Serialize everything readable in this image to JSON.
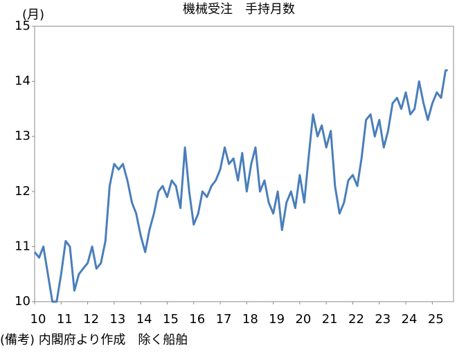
{
  "chart_data": {
    "type": "line",
    "title": "機械受注　手持月数",
    "y_unit": "(月)",
    "note": "(備考) 内閣府より作成　除く船舶",
    "x": [
      10,
      10.17,
      10.33,
      10.5,
      10.67,
      10.83,
      11,
      11.17,
      11.33,
      11.5,
      11.67,
      11.83,
      12,
      12.17,
      12.33,
      12.5,
      12.67,
      12.83,
      13,
      13.17,
      13.33,
      13.5,
      13.67,
      13.83,
      14,
      14.17,
      14.33,
      14.5,
      14.67,
      14.83,
      15,
      15.17,
      15.33,
      15.5,
      15.67,
      15.83,
      16,
      16.17,
      16.33,
      16.5,
      16.67,
      16.83,
      17,
      17.17,
      17.33,
      17.5,
      17.67,
      17.83,
      18,
      18.17,
      18.33,
      18.5,
      18.67,
      18.83,
      19,
      19.17,
      19.33,
      19.5,
      19.67,
      19.83,
      20,
      20.17,
      20.33,
      20.5,
      20.67,
      20.83,
      21,
      21.17,
      21.33,
      21.5,
      21.67,
      21.83,
      22,
      22.17,
      22.33,
      22.5,
      22.67,
      22.83,
      23,
      23.17,
      23.33,
      23.5,
      23.67,
      23.83,
      24,
      24.17,
      24.33,
      24.5,
      24.67,
      24.83,
      25,
      25.17,
      25.33,
      25.5,
      25.58
    ],
    "series": [
      {
        "color": "#4a7ebb",
        "values": [
          10.9,
          10.8,
          11.0,
          10.5,
          10.0,
          10.0,
          10.5,
          11.1,
          11.0,
          10.2,
          10.5,
          10.6,
          10.7,
          11.0,
          10.6,
          10.7,
          11.1,
          12.1,
          12.5,
          12.4,
          12.5,
          12.2,
          11.8,
          11.6,
          11.2,
          10.9,
          11.3,
          11.6,
          12.0,
          12.1,
          11.9,
          12.2,
          12.1,
          11.7,
          12.8,
          12.0,
          11.4,
          11.6,
          12.0,
          11.9,
          12.1,
          12.2,
          12.4,
          12.8,
          12.5,
          12.6,
          12.2,
          12.7,
          12.0,
          12.5,
          12.8,
          12.0,
          12.2,
          11.8,
          11.6,
          12.0,
          11.3,
          11.8,
          12.0,
          11.7,
          12.3,
          11.8,
          12.6,
          13.4,
          13.0,
          13.2,
          12.8,
          13.1,
          12.1,
          11.6,
          11.8,
          12.2,
          12.3,
          12.1,
          12.6,
          13.3,
          13.4,
          13.0,
          13.3,
          12.8,
          13.1,
          13.6,
          13.7,
          13.5,
          13.8,
          13.4,
          13.5,
          14.0,
          13.6,
          13.3,
          13.6,
          13.8,
          13.7,
          14.2,
          14.2
        ]
      }
    ],
    "xlim": [
      10,
      25.8
    ],
    "xticks": [
      10,
      11,
      12,
      13,
      14,
      15,
      16,
      17,
      18,
      19,
      20,
      21,
      22,
      23,
      24,
      25
    ],
    "ylim": [
      10,
      15
    ],
    "yticks": [
      10,
      11,
      12,
      13,
      14,
      15
    ],
    "grid": false
  }
}
